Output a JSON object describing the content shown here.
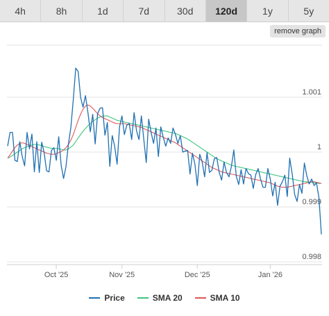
{
  "tabs": [
    {
      "label": "4h",
      "active": false
    },
    {
      "label": "8h",
      "active": false
    },
    {
      "label": "1d",
      "active": false
    },
    {
      "label": "7d",
      "active": false
    },
    {
      "label": "30d",
      "active": false
    },
    {
      "label": "120d",
      "active": true
    },
    {
      "label": "1y",
      "active": false
    },
    {
      "label": "5y",
      "active": false
    }
  ],
  "remove_graph_label": "remove graph",
  "colors": {
    "price": "#1f6fb0",
    "sma20": "#3cc47c",
    "sma10": "#e05555",
    "grid": "#e3e3e3"
  },
  "chart_data": {
    "type": "line",
    "x_ticks": [
      "Oct '25",
      "Nov '25",
      "Dec '25",
      "Jan '26"
    ],
    "y_ticks": [
      "0.998",
      "0.999",
      "1",
      "1.001"
    ],
    "ylim": [
      0.99795,
      1.00195
    ],
    "legend_position": "bottom",
    "series": [
      {
        "name": "Price",
        "values": [
          1.00011,
          1.00036,
          1.00036,
          0.99985,
          0.99983,
          1.00019,
          0.99992,
          0.99975,
          1.00036,
          1.00006,
          1.00033,
          0.99964,
          1.00019,
          0.99963,
          1.00018,
          0.99999,
          0.99966,
          0.99964,
          1.00003,
          1.00008,
          0.99985,
          1.00028,
          0.99976,
          0.99952,
          0.99974,
          1.00015,
          1.00045,
          1.00096,
          1.00153,
          1.00147,
          1.001,
          1.00082,
          1.00103,
          1.00073,
          1.00037,
          1.00069,
          1.00015,
          1.0007,
          1.0008,
          1.00081,
          1.00031,
          1.00054,
          0.99974,
          1.0003,
          1.00011,
          0.99978,
          1.00046,
          1.00066,
          1.00032,
          1.00049,
          1.00052,
          1.00023,
          1.00072,
          1.00039,
          1.00023,
          1.00066,
          1.00023,
          0.99981,
          1.0006,
          1.00036,
          1.00016,
          1.00044,
          0.99992,
          1.00046,
          1.00027,
          1.00011,
          1.00026,
          1.00016,
          1.00044,
          1.00032,
          1.00016,
          1.0003,
          1.0,
          1.00002,
          1.00003,
          0.9996,
          0.99998,
          0.99978,
          0.99939,
          0.99996,
          0.99982,
          0.99955,
          0.99999,
          0.99963,
          0.99967,
          0.99988,
          0.9999,
          0.99963,
          0.99949,
          0.99982,
          0.99963,
          0.99955,
          0.99974,
          1.00004,
          0.99956,
          0.99941,
          0.99968,
          0.99942,
          0.9997,
          0.99961,
          0.99958,
          0.99934,
          0.99959,
          0.9997,
          0.99951,
          0.99936,
          0.99936,
          0.9997,
          0.99951,
          0.9992,
          0.99945,
          0.99903,
          0.99938,
          0.99946,
          0.99958,
          0.99919,
          0.99989,
          0.9996,
          0.99923,
          0.9991,
          0.99941,
          0.99925,
          0.9998,
          0.99957,
          0.99942,
          0.99951,
          0.99939,
          0.99944,
          0.99917,
          0.9985
        ]
      },
      {
        "name": "SMA 20",
        "values": [
          0.99989,
          0.99991,
          0.99994,
          0.99997,
          1.0,
          1.00003,
          1.00006,
          1.00008,
          1.0001,
          1.00012,
          1.00013,
          1.00014,
          1.00014,
          1.00013,
          1.00012,
          1.0001,
          1.00009,
          1.00008,
          1.00007,
          1.00007,
          1.00007,
          1.00006,
          1.00005,
          1.00004,
          1.00004,
          1.00006,
          1.00009,
          1.00013,
          1.00019,
          1.00026,
          1.00032,
          1.00038,
          1.00043,
          1.00048,
          1.00052,
          1.00056,
          1.00059,
          1.00062,
          1.00064,
          1.00066,
          1.00066,
          1.00066,
          1.00064,
          1.00062,
          1.0006,
          1.00058,
          1.00057,
          1.00056,
          1.00055,
          1.00054,
          1.00053,
          1.00052,
          1.00051,
          1.0005,
          1.00049,
          1.00048,
          1.00047,
          1.00046,
          1.00045,
          1.00044,
          1.00043,
          1.00042,
          1.00041,
          1.0004,
          1.00039,
          1.00038,
          1.00037,
          1.00036,
          1.00035,
          1.00034,
          1.00032,
          1.0003,
          1.00028,
          1.00026,
          1.00024,
          1.00021,
          1.00018,
          1.00015,
          1.00012,
          1.00009,
          1.00006,
          1.00003,
          1.0,
          0.99997,
          0.99994,
          0.99991,
          0.99988,
          0.99986,
          0.99984,
          0.99982,
          0.9998,
          0.99978,
          0.99976,
          0.99975,
          0.99974,
          0.99973,
          0.99972,
          0.99971,
          0.9997,
          0.99969,
          0.99968,
          0.99967,
          0.99966,
          0.99965,
          0.99964,
          0.99963,
          0.99962,
          0.99961,
          0.9996,
          0.99959,
          0.99958,
          0.99957,
          0.99956,
          0.99955,
          0.99954,
          0.99953,
          0.99952,
          0.99951,
          0.9995,
          0.99949,
          0.99948,
          0.99947,
          0.99946,
          0.99946,
          0.99945,
          0.99945,
          0.99944,
          0.99944,
          0.99943,
          0.99943
        ]
      },
      {
        "name": "SMA 10",
        "values": [
          0.99989,
          0.99995,
          1.00002,
          1.00008,
          1.00013,
          1.00016,
          1.00017,
          1.00016,
          1.00014,
          1.00012,
          1.0001,
          1.00008,
          1.00006,
          1.00004,
          1.00002,
          1.0,
          0.99998,
          0.99997,
          0.99996,
          0.99996,
          0.99997,
          0.99999,
          1.00001,
          1.00004,
          1.00008,
          1.00014,
          1.00022,
          1.00032,
          1.00045,
          1.00058,
          1.00069,
          1.00078,
          1.00084,
          1.00086,
          1.00084,
          1.0008,
          1.00075,
          1.0007,
          1.00066,
          1.00063,
          1.00061,
          1.00059,
          1.00057,
          1.00055,
          1.00053,
          1.00052,
          1.00052,
          1.00052,
          1.00052,
          1.00051,
          1.0005,
          1.00049,
          1.00048,
          1.00047,
          1.00046,
          1.00045,
          1.00043,
          1.00041,
          1.00039,
          1.00037,
          1.00035,
          1.00033,
          1.00031,
          1.00029,
          1.00027,
          1.00025,
          1.00023,
          1.00021,
          1.00019,
          1.00017,
          1.00014,
          1.00011,
          1.00008,
          1.00005,
          1.00002,
          0.99999,
          0.99996,
          0.99993,
          0.9999,
          0.99987,
          0.99984,
          0.99981,
          0.99978,
          0.99975,
          0.99972,
          0.9997,
          0.99968,
          0.99966,
          0.99964,
          0.99963,
          0.99962,
          0.99961,
          0.9996,
          0.99959,
          0.99958,
          0.99957,
          0.99956,
          0.99955,
          0.99954,
          0.99953,
          0.99952,
          0.99951,
          0.9995,
          0.99949,
          0.99948,
          0.99947,
          0.99946,
          0.99945,
          0.99944,
          0.99942,
          0.9994,
          0.99938,
          0.99937,
          0.99936,
          0.99936,
          0.99936,
          0.99937,
          0.99938,
          0.99939,
          0.9994,
          0.99941,
          0.99942,
          0.99943,
          0.99944,
          0.99945,
          0.99946,
          0.99946,
          0.99945,
          0.99944,
          0.99943
        ]
      }
    ]
  }
}
